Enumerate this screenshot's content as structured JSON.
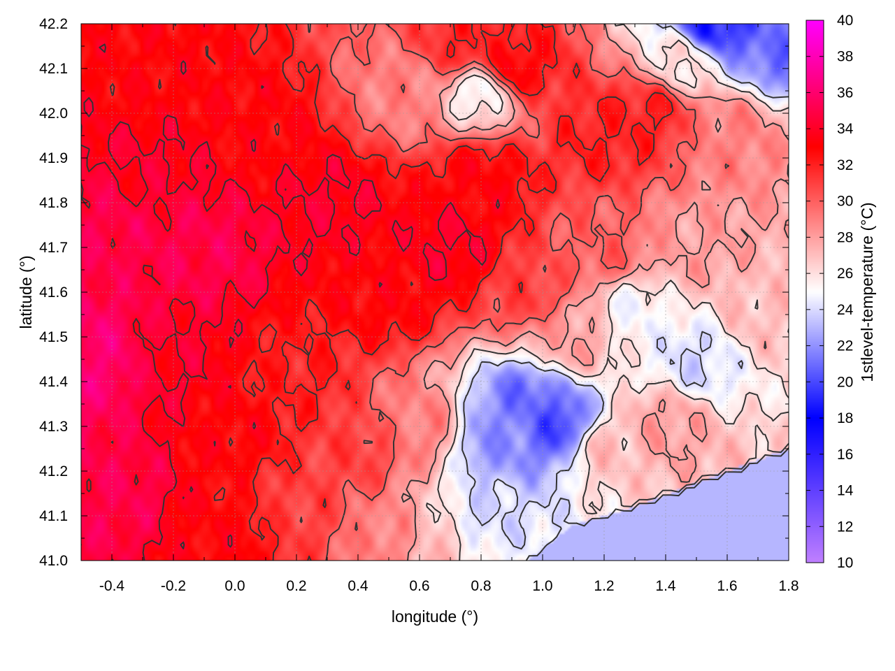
{
  "chart_data": {
    "type": "heatmap",
    "title": "",
    "xlabel": "longitude (°)",
    "ylabel": "latitude (°)",
    "colorbar_label": "1stlevel-temperature (°C)",
    "xlim": [
      -0.5,
      1.8
    ],
    "ylim": [
      41.0,
      42.2
    ],
    "zlim": [
      10,
      40
    ],
    "x_ticks": [
      "-0.4",
      "-0.2",
      "0.0",
      "0.2",
      "0.4",
      "0.6",
      "0.8",
      "1.0",
      "1.2",
      "1.4",
      "1.6",
      "1.8"
    ],
    "x_tick_values": [
      -0.4,
      -0.2,
      0.0,
      0.2,
      0.4,
      0.6,
      0.8,
      1.0,
      1.2,
      1.4,
      1.6,
      1.8
    ],
    "y_ticks": [
      "41.0",
      "41.1",
      "41.2",
      "41.3",
      "41.4",
      "41.5",
      "41.6",
      "41.7",
      "41.8",
      "41.9",
      "42.0",
      "42.1",
      "42.2"
    ],
    "y_tick_values": [
      41.0,
      41.1,
      41.2,
      41.3,
      41.4,
      41.5,
      41.6,
      41.7,
      41.8,
      41.9,
      42.0,
      42.1,
      42.2
    ],
    "colorbar_ticks": [
      "10",
      "12",
      "14",
      "16",
      "18",
      "20",
      "22",
      "24",
      "26",
      "28",
      "30",
      "32",
      "34",
      "36",
      "38",
      "40"
    ],
    "colorbar_tick_values": [
      10,
      12,
      14,
      16,
      18,
      20,
      22,
      24,
      26,
      28,
      30,
      32,
      34,
      36,
      38,
      40
    ],
    "colormap": [
      {
        "value": 10,
        "color": "#c080ff"
      },
      {
        "value": 18,
        "color": "#0000ff"
      },
      {
        "value": 25,
        "color": "#ffffff"
      },
      {
        "value": 33,
        "color": "#ff0000"
      },
      {
        "value": 40,
        "color": "#ff00ff"
      }
    ],
    "grid": true,
    "contours": true,
    "contour_color": "#333333",
    "sea_temperature": 23,
    "temperature_samples": [
      {
        "lon": -0.45,
        "lat": 41.45,
        "t": 36
      },
      {
        "lon": -0.4,
        "lat": 41.15,
        "t": 35
      },
      {
        "lon": -0.4,
        "lat": 41.75,
        "t": 35
      },
      {
        "lon": -0.3,
        "lat": 41.85,
        "t": 34
      },
      {
        "lon": -0.1,
        "lat": 41.7,
        "t": 35
      },
      {
        "lon": -0.2,
        "lat": 41.45,
        "t": 34
      },
      {
        "lon": 0.0,
        "lat": 41.3,
        "t": 33
      },
      {
        "lon": 0.1,
        "lat": 41.95,
        "t": 33
      },
      {
        "lon": -0.3,
        "lat": 42.1,
        "t": 33
      },
      {
        "lon": 0.3,
        "lat": 41.8,
        "t": 34
      },
      {
        "lon": 0.5,
        "lat": 41.6,
        "t": 33
      },
      {
        "lon": 0.7,
        "lat": 41.7,
        "t": 34
      },
      {
        "lon": 0.8,
        "lat": 41.85,
        "t": 33
      },
      {
        "lon": 0.55,
        "lat": 42.05,
        "t": 29
      },
      {
        "lon": 0.75,
        "lat": 42.15,
        "t": 32
      },
      {
        "lon": 0.9,
        "lat": 42.1,
        "t": 33
      },
      {
        "lon": 0.8,
        "lat": 42.05,
        "t": 25
      },
      {
        "lon": 1.2,
        "lat": 41.95,
        "t": 32
      },
      {
        "lon": 1.35,
        "lat": 42.0,
        "t": 32
      },
      {
        "lon": 1.45,
        "lat": 42.12,
        "t": 26
      },
      {
        "lon": 1.55,
        "lat": 42.2,
        "t": 19
      },
      {
        "lon": 1.78,
        "lat": 42.15,
        "t": 21
      },
      {
        "lon": 1.6,
        "lat": 41.95,
        "t": 29
      },
      {
        "lon": 1.5,
        "lat": 41.7,
        "t": 28
      },
      {
        "lon": 1.2,
        "lat": 41.7,
        "t": 30
      },
      {
        "lon": 1.3,
        "lat": 41.55,
        "t": 25
      },
      {
        "lon": 1.5,
        "lat": 41.45,
        "t": 24
      },
      {
        "lon": 1.7,
        "lat": 41.55,
        "t": 27
      },
      {
        "lon": 1.1,
        "lat": 41.5,
        "t": 28
      },
      {
        "lon": 0.95,
        "lat": 41.35,
        "t": 21
      },
      {
        "lon": 1.05,
        "lat": 41.3,
        "t": 20
      },
      {
        "lon": 0.85,
        "lat": 41.27,
        "t": 22
      },
      {
        "lon": 0.8,
        "lat": 41.1,
        "t": 24
      },
      {
        "lon": 1.2,
        "lat": 41.25,
        "t": 27
      },
      {
        "lon": 1.4,
        "lat": 41.3,
        "t": 28
      },
      {
        "lon": 0.6,
        "lat": 41.3,
        "t": 29
      },
      {
        "lon": 0.4,
        "lat": 41.25,
        "t": 31
      },
      {
        "lon": 0.2,
        "lat": 41.1,
        "t": 31
      },
      {
        "lon": 0.5,
        "lat": 41.05,
        "t": 29
      },
      {
        "lon": 0.65,
        "lat": 41.05,
        "t": 27
      },
      {
        "lon": 0.2,
        "lat": 41.4,
        "t": 32
      },
      {
        "lon": 0.95,
        "lat": 41.6,
        "t": 31
      },
      {
        "lon": 0.0,
        "lat": 41.05,
        "t": 33
      }
    ],
    "coastline": [
      [
        0.95,
        41.0
      ],
      [
        1.1,
        41.08
      ],
      [
        1.3,
        41.12
      ],
      [
        1.45,
        41.16
      ],
      [
        1.6,
        41.2
      ],
      [
        1.8,
        41.25
      ]
    ]
  }
}
